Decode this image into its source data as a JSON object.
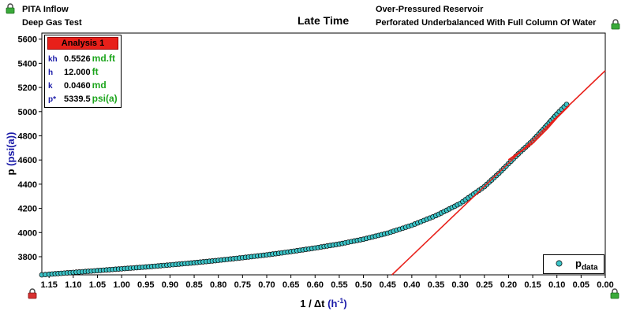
{
  "header": {
    "left_line1": "PITA Inflow",
    "left_line2": "Deep Gas Test",
    "center": "Late Time",
    "right_line1": "Over-Pressured Reservoir",
    "right_line2": "Perforated Underbalanced With Full Column Of Water"
  },
  "analysis": {
    "title": "Analysis 1",
    "rows": [
      {
        "sym": "kh",
        "value": "0.5526",
        "unit": "md.ft"
      },
      {
        "sym": "h",
        "value": "12.000",
        "unit": "ft"
      },
      {
        "sym": "k",
        "value": "0.0460",
        "unit": "md"
      },
      {
        "sym": "p*",
        "value": "5339.5",
        "unit": "psi(a)"
      }
    ]
  },
  "legend": {
    "label_main": "p",
    "label_sub": "data"
  },
  "colors": {
    "data_fill": "#3cc4c8",
    "fit_line": "#e8201a",
    "analysis_title_bg": "#e8201a",
    "unit_text": "#1ca51c",
    "symbol_text": "#1a1aa8",
    "axis_title_blue": "#1a1aa8"
  },
  "icons": [
    "lock-icon",
    "lock-icon",
    "lock-icon",
    "lock-icon"
  ],
  "chart_data": {
    "type": "scatter",
    "xlabel": "1 / Δt (h⁻¹)",
    "ylabel": "p (psi(a))",
    "xlim": [
      1.165,
      0.0
    ],
    "ylim": [
      3650,
      5650
    ],
    "x_reversed": true,
    "x_ticks": [
      1.15,
      1.1,
      1.05,
      1.0,
      0.95,
      0.9,
      0.85,
      0.8,
      0.75,
      0.7,
      0.65,
      0.6,
      0.55,
      0.5,
      0.45,
      0.4,
      0.35,
      0.3,
      0.25,
      0.2,
      0.15,
      0.1,
      0.05,
      0.0
    ],
    "x_tick_labels": [
      "1.15",
      "1.10",
      "1.05",
      "1.00",
      "0.95",
      "0.90",
      "0.85",
      "0.80",
      "0.75",
      "0.70",
      "0.65",
      "0.60",
      "0.55",
      "0.50",
      "0.45",
      "0.40",
      "0.35",
      "0.30",
      "0.25",
      "0.20",
      "0.15",
      "0.10",
      "0.05",
      "0.00"
    ],
    "y_ticks": [
      3800,
      4000,
      4200,
      4400,
      4600,
      4800,
      5000,
      5200,
      5400,
      5600
    ],
    "y_tick_labels": [
      "3800",
      "4000",
      "4200",
      "4400",
      "4600",
      "4800",
      "5000",
      "5200",
      "5400",
      "5600"
    ],
    "grid": false,
    "legend_position": "bottom-right",
    "series": [
      {
        "name": "p data",
        "points": [
          [
            1.165,
            3650
          ],
          [
            1.15,
            3655
          ],
          [
            1.1,
            3670
          ],
          [
            1.05,
            3685
          ],
          [
            1.0,
            3700
          ],
          [
            0.95,
            3715
          ],
          [
            0.9,
            3732
          ],
          [
            0.85,
            3750
          ],
          [
            0.8,
            3770
          ],
          [
            0.75,
            3792
          ],
          [
            0.7,
            3815
          ],
          [
            0.65,
            3842
          ],
          [
            0.6,
            3872
          ],
          [
            0.55,
            3905
          ],
          [
            0.5,
            3945
          ],
          [
            0.45,
            3995
          ],
          [
            0.4,
            4060
          ],
          [
            0.35,
            4140
          ],
          [
            0.3,
            4240
          ],
          [
            0.25,
            4380
          ],
          [
            0.22,
            4490
          ],
          [
            0.2,
            4570
          ],
          [
            0.18,
            4650
          ],
          [
            0.15,
            4760
          ],
          [
            0.12,
            4890
          ],
          [
            0.1,
            4980
          ],
          [
            0.08,
            5060
          ]
        ]
      },
      {
        "name": "fit line",
        "points": [
          [
            0.441,
            3650
          ],
          [
            0.0,
            5339.5
          ]
        ]
      },
      {
        "name": "derivative tail",
        "points": [
          [
            0.2,
            4600
          ],
          [
            0.15,
            4740
          ],
          [
            0.12,
            4860
          ],
          [
            0.1,
            4950
          ],
          [
            0.075,
            5050
          ]
        ]
      }
    ]
  }
}
